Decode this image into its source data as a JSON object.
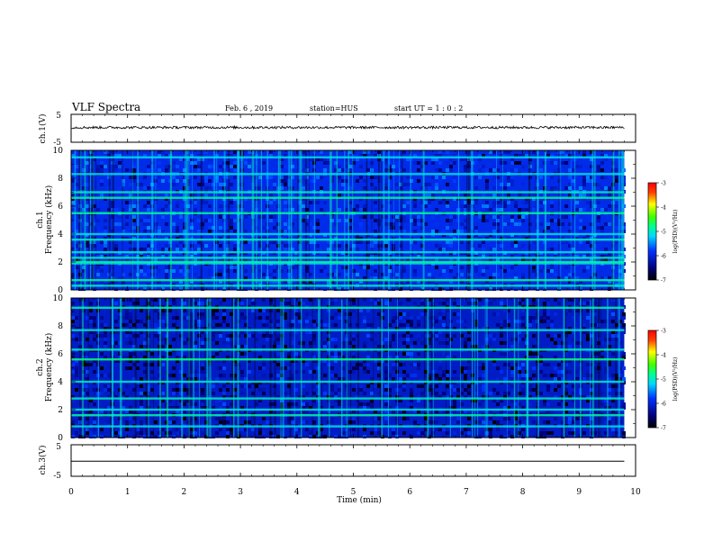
{
  "header": {
    "title": "VLF Spectra",
    "date": "Feb. 6 , 2019",
    "station": "station=HUS",
    "start_ut": "start UT =  1 : 0 : 2"
  },
  "chart_data": [
    {
      "type": "line",
      "panel": "ch1-waveform",
      "ylabel": "ch.1(V)",
      "yticks": [
        "5",
        "-5"
      ],
      "ylim": [
        -5,
        5
      ],
      "x": [
        0,
        9.8
      ],
      "values": [
        0.3,
        0.3
      ],
      "noise_amplitude": 0.45,
      "color": "#000000"
    },
    {
      "type": "heatmap",
      "panel": "ch1-spectrogram",
      "ylabel": "Frequency (kHz)",
      "ylabel2": "ch.1",
      "ylim": [
        0,
        10
      ],
      "yticks": [
        "0",
        "2",
        "4",
        "6",
        "8",
        "10"
      ],
      "xlim": [
        0,
        10
      ],
      "data_xmax": 9.8,
      "bands_khz": [
        0.3,
        0.7,
        1.9,
        2.0,
        2.3,
        2.7,
        3.6,
        4.0,
        5.5,
        6.6,
        7.0,
        8.3,
        9.5
      ],
      "colorbar": {
        "label": "log(PSD)(V²/Hz)",
        "ticks": [
          "-3",
          "-4",
          "-5",
          "-6",
          "-7"
        ],
        "range": [
          -7,
          -3
        ]
      }
    },
    {
      "type": "heatmap",
      "panel": "ch2-spectrogram",
      "ylabel": "Frequency (kHz)",
      "ylabel2": "ch.2",
      "ylim": [
        0,
        10
      ],
      "yticks": [
        "0",
        "2",
        "4",
        "6",
        "8",
        "10"
      ],
      "xlim": [
        0,
        10
      ],
      "data_xmax": 9.8,
      "bands_khz": [
        0.8,
        1.6,
        2.0,
        2.8,
        4.0,
        5.6,
        6.3,
        7.7,
        9.3
      ],
      "colorbar": {
        "label": "log(PSD)(V²/Hz)",
        "ticks": [
          "-3",
          "-4",
          "-5",
          "-6",
          "-7"
        ],
        "range": [
          -7,
          -3
        ]
      }
    },
    {
      "type": "line",
      "panel": "ch3-waveform",
      "ylabel": "ch.3(V)",
      "yticks": [
        "5",
        "-5"
      ],
      "ylim": [
        -5,
        5
      ],
      "x": [
        0,
        9.8
      ],
      "values": [
        -0.2,
        -0.2
      ],
      "color": "#000000"
    }
  ],
  "xaxis": {
    "label": "Time (min)",
    "ticks": [
      "0",
      "1",
      "2",
      "3",
      "4",
      "5",
      "6",
      "7",
      "8",
      "9",
      "10"
    ]
  },
  "colors": {
    "axes": "#000000",
    "background": "#ffffff"
  }
}
